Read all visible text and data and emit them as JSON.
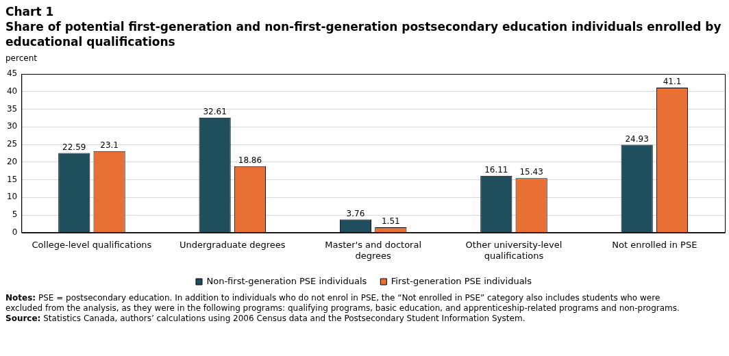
{
  "chart_data": {
    "type": "bar",
    "title": "Chart 1\nShare of potential first-generation and non-first-generation postsecondary education individuals enrolled by educational qualifications",
    "ylabel": "percent",
    "categories": [
      "College-level qualifications",
      "Undergraduate degrees",
      "Master's and doctoral degrees",
      "Other university-level qualifications",
      "Not enrolled in PSE"
    ],
    "series": [
      {
        "name": "Non-first-generation PSE individuals",
        "color": "#1f4e5c",
        "values": [
          22.59,
          32.61,
          3.76,
          16.11,
          24.93
        ]
      },
      {
        "name": "First-generation PSE individuals",
        "color": "#e87034",
        "values": [
          23.1,
          18.86,
          1.51,
          15.43,
          41.1
        ]
      }
    ],
    "ylim": [
      0,
      45
    ],
    "yticks": [
      0,
      5,
      10,
      15,
      20,
      25,
      30,
      35,
      40,
      45
    ],
    "grid": "y",
    "legend": "bottom",
    "data_labels": true,
    "annotations": [
      "Notes: PSE = postsecondary education. In addition to individuals who do not enrol in PSE, the “Not enrolled in PSE” category also includes students who were excluded from the analysis, as they were in the following programs: qualifying programs, basic education, and apprenticeship-related programs and non-programs.",
      "Source: Statistics Canada, authors’ calculations using 2006 Census data and the Postsecondary Student Information System."
    ]
  }
}
